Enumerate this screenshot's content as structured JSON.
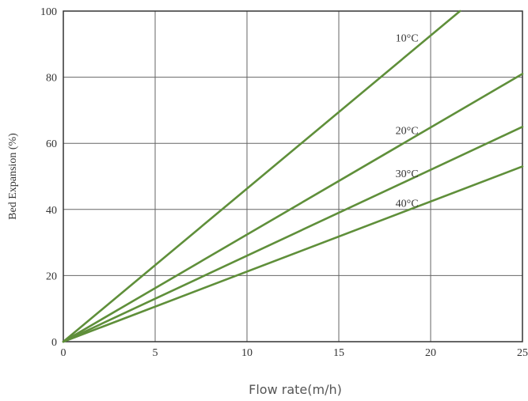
{
  "chart_data": {
    "type": "line",
    "xlabel": "Flow rate(m/h)",
    "ylabel": "Bed Expansion (%)",
    "xlim": [
      0,
      25
    ],
    "ylim": [
      0,
      100
    ],
    "xticks": [
      "0",
      "5",
      "10",
      "15",
      "20",
      "25"
    ],
    "yticks": [
      "0",
      "20",
      "40",
      "60",
      "80",
      "100"
    ],
    "grid": true,
    "series": [
      {
        "name": "10°C",
        "x": [
          0,
          21.6
        ],
        "y": [
          0,
          100
        ]
      },
      {
        "name": "20°C",
        "x": [
          0,
          25
        ],
        "y": [
          0,
          81
        ]
      },
      {
        "name": "30°C",
        "x": [
          0,
          25
        ],
        "y": [
          0,
          65
        ]
      },
      {
        "name": "40°C",
        "x": [
          0,
          25
        ],
        "y": [
          0,
          53
        ]
      }
    ],
    "line_color": "#5f8f3a"
  }
}
